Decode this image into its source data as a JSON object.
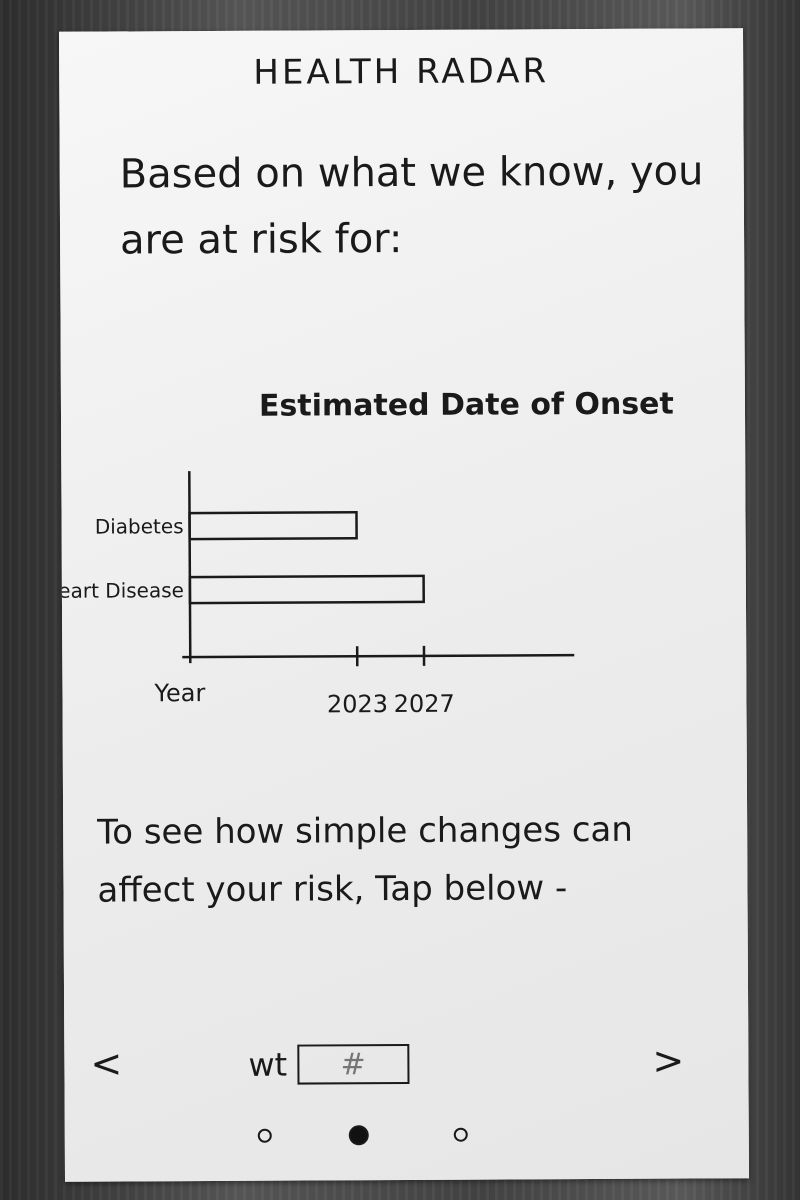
{
  "app": {
    "title": "HEALTH RADAR"
  },
  "intro": {
    "text": "Based on what we know, you are at risk for:"
  },
  "chart_data": {
    "type": "bar",
    "orientation": "horizontal",
    "title": "Estimated Date of Onset",
    "xlabel": "Year",
    "ylabel": "",
    "categories": [
      "Diabetes",
      "Heart Disease"
    ],
    "values": [
      2023,
      2027
    ],
    "x_ticks": [
      2023,
      2027
    ],
    "xlim": [
      2013,
      2036
    ],
    "grid": false,
    "legend": "none"
  },
  "cta": {
    "text": "To see how simple changes can affect your risk, Tap below -"
  },
  "carousel": {
    "prev_label": "<",
    "next_label": ">",
    "metric_label": "wt",
    "metric_placeholder": "#",
    "metric_value": ""
  },
  "pager": {
    "count": 3,
    "active_index": 1
  },
  "colors": {
    "ink": "#1a1a1a",
    "paper": "#efefef"
  }
}
